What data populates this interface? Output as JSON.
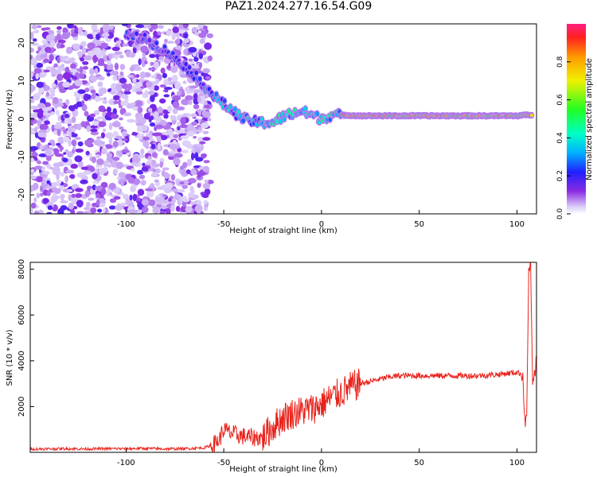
{
  "figure": {
    "title": "PAZ1.2024.277.16.54.G09"
  },
  "chart_data": [
    {
      "type": "heatmap",
      "title": "PAZ1.2024.277.16.54.G09",
      "xlabel": "Height of straight line (km)",
      "ylabel": "Frequency (Hz)",
      "xlim": [
        -149,
        110
      ],
      "ylim": [
        -25,
        25
      ],
      "xticks": [
        -100,
        -50,
        0,
        50,
        100
      ],
      "yticks": [
        -20,
        -10,
        0,
        10,
        20
      ],
      "colorbar": {
        "label": "Normalized spectral amplitude",
        "range": [
          0,
          1
        ],
        "ticks": [
          0.0,
          0.2,
          0.4,
          0.6,
          0.8
        ],
        "tick_labels": [
          "0.0",
          "0.2",
          "0.4",
          "0.6",
          "0.8"
        ]
      },
      "ridge": {
        "x": [
          -100,
          -90,
          -80,
          -70,
          -62,
          -55,
          -48,
          -40,
          -32,
          -25,
          -18,
          -10,
          -5,
          0,
          5,
          10,
          20,
          50,
          80,
          100,
          105
        ],
        "frequency": [
          22,
          21,
          18,
          14,
          10,
          6,
          3,
          0,
          -1,
          -1,
          1,
          2,
          1,
          0,
          1,
          1,
          0.8,
          0.8,
          0.8,
          0.8,
          1
        ]
      },
      "grid": false
    },
    {
      "type": "line",
      "xlabel": "Height of straight line (km)",
      "ylabel": "SNR (10 * v/v)",
      "xlim": [
        -149,
        110
      ],
      "ylim": [
        0,
        8300
      ],
      "xticks": [
        -100,
        -50,
        0,
        50,
        100
      ],
      "yticks": [
        2000,
        4000,
        6000,
        8000
      ],
      "series": [
        {
          "color": "#e8231c",
          "x": [
            -149,
            -140,
            -130,
            -120,
            -110,
            -100,
            -90,
            -80,
            -70,
            -60,
            -55,
            -52,
            -50,
            -48,
            -45,
            -40,
            -35,
            -30,
            -25,
            -20,
            -15,
            -10,
            -5,
            0,
            5,
            10,
            15,
            20,
            25,
            30,
            35,
            40,
            50,
            60,
            70,
            80,
            90,
            95,
            100,
            103,
            104,
            105,
            106,
            107,
            108,
            110
          ],
          "values": [
            150,
            150,
            160,
            150,
            160,
            160,
            170,
            150,
            160,
            200,
            350,
            600,
            1000,
            900,
            800,
            700,
            650,
            650,
            1100,
            1500,
            1700,
            1800,
            1900,
            2100,
            2400,
            2600,
            2850,
            3000,
            3100,
            3200,
            3300,
            3350,
            3350,
            3350,
            3350,
            3350,
            3400,
            3450,
            3500,
            3400,
            1300,
            1500,
            7900,
            8300,
            2800,
            4000
          ]
        }
      ],
      "grid": false
    }
  ]
}
